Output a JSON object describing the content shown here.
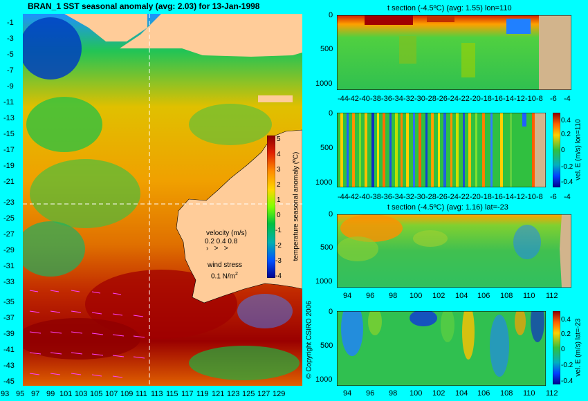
{
  "map": {
    "title": "BRAN_1 SST seasonal anomaly (avg: 2.03) for 13-Jan-1998",
    "lat_ticks": [
      "-1",
      "-3",
      "-5",
      "-7",
      "-9",
      "-11",
      "-13",
      "-15",
      "-17",
      "-19",
      "-21",
      "-23",
      "-25",
      "-27",
      "-29",
      "-31",
      "-33",
      "-35",
      "-37",
      "-39",
      "-41",
      "-43",
      "-45"
    ],
    "lon_ticks": [
      "93",
      "95",
      "97",
      "99",
      "101",
      "103",
      "105",
      "107",
      "109",
      "111",
      "113",
      "115",
      "117",
      "119",
      "121",
      "123",
      "125",
      "127",
      "129"
    ],
    "colorbar": {
      "label": "temperature seasonal anomaly (ºC)",
      "ticks": [
        "5",
        "4",
        "3",
        "2",
        "1",
        "0",
        "-1",
        "-2",
        "-3",
        "-4"
      ]
    },
    "velocity_label": "velocity (m/s)",
    "velocity_values": "0.2 0.4 0.8",
    "wind_label": "wind stress",
    "wind_value": "0.1 N/m",
    "wind_exp": "2",
    "copyright": "© Copyright CSIRO 2006",
    "crosshair": {
      "lon": 110,
      "lat": -23
    }
  },
  "panels": [
    {
      "title": "t section (-4.5ºC) (avg: 1.55) lon=110",
      "y_ticks": [
        "0",
        "500",
        "1000"
      ],
      "x_ticks": [
        "-44",
        "-42",
        "-40",
        "-38",
        "-36",
        "-34",
        "-32",
        "-30",
        "-28",
        "-26",
        "-24",
        "-22",
        "-20",
        "-18",
        "-16",
        "-14",
        "-12",
        "-10",
        "-8",
        "-6",
        "-4"
      ]
    },
    {
      "title": "",
      "y_ticks": [
        "0",
        "500",
        "1000"
      ],
      "x_ticks": [
        "-44",
        "-42",
        "-40",
        "-38",
        "-36",
        "-34",
        "-32",
        "-30",
        "-28",
        "-26",
        "-24",
        "-22",
        "-20",
        "-18",
        "-16",
        "-14",
        "-12",
        "-10",
        "-8",
        "-6",
        "-4"
      ],
      "cb_label": "vel. E (m/s) lon=110",
      "cb_ticks": [
        "0.4",
        "0.2",
        "0",
        "-0.2",
        "-0.4"
      ]
    },
    {
      "title": "t section (-4.5ºC) (avg: 1.16) lat=-23",
      "y_ticks": [
        "0",
        "500",
        "1000"
      ],
      "x_ticks": [
        "94",
        "96",
        "98",
        "100",
        "102",
        "104",
        "106",
        "108",
        "110",
        "112"
      ]
    },
    {
      "title": "",
      "y_ticks": [
        "0",
        "500",
        "1000"
      ],
      "x_ticks": [
        "94",
        "96",
        "98",
        "100",
        "102",
        "104",
        "106",
        "108",
        "110",
        "112"
      ],
      "cb_label": "vel. E (m/s) lat=-23",
      "cb_ticks": [
        "0.4",
        "0.2",
        "0",
        "-0.2",
        "-0.4"
      ]
    }
  ]
}
